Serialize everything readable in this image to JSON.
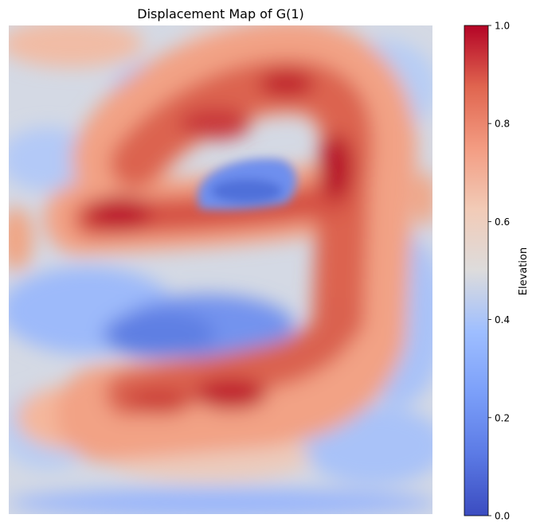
{
  "chart_data": {
    "type": "heatmap",
    "title": "Displacement Map of G(1)",
    "colorbar": {
      "label": "Elevation",
      "colormap": "coolwarm",
      "range": [
        0.0,
        1.0
      ],
      "ticks": [
        {
          "value": 0.0,
          "label": "0.0"
        },
        {
          "value": 0.2,
          "label": "0.2"
        },
        {
          "value": 0.4,
          "label": "0.4"
        },
        {
          "value": 0.6,
          "label": "0.6"
        },
        {
          "value": 0.8,
          "label": "0.8"
        },
        {
          "value": 1.0,
          "label": "1.0"
        }
      ]
    },
    "axes_visible": false,
    "grid": false,
    "depicted_shape": "a",
    "background_level": 0.45,
    "features": [
      {
        "name": "bowl-top-arc",
        "level": 0.85
      },
      {
        "name": "stem-right",
        "level": 0.82
      },
      {
        "name": "bowl-middle-bar",
        "level": 0.88
      },
      {
        "name": "bowl-bottom-bar",
        "level": 0.86
      },
      {
        "name": "counter-upper",
        "level": 0.15
      },
      {
        "name": "counter-lower",
        "level": 0.12
      }
    ]
  }
}
